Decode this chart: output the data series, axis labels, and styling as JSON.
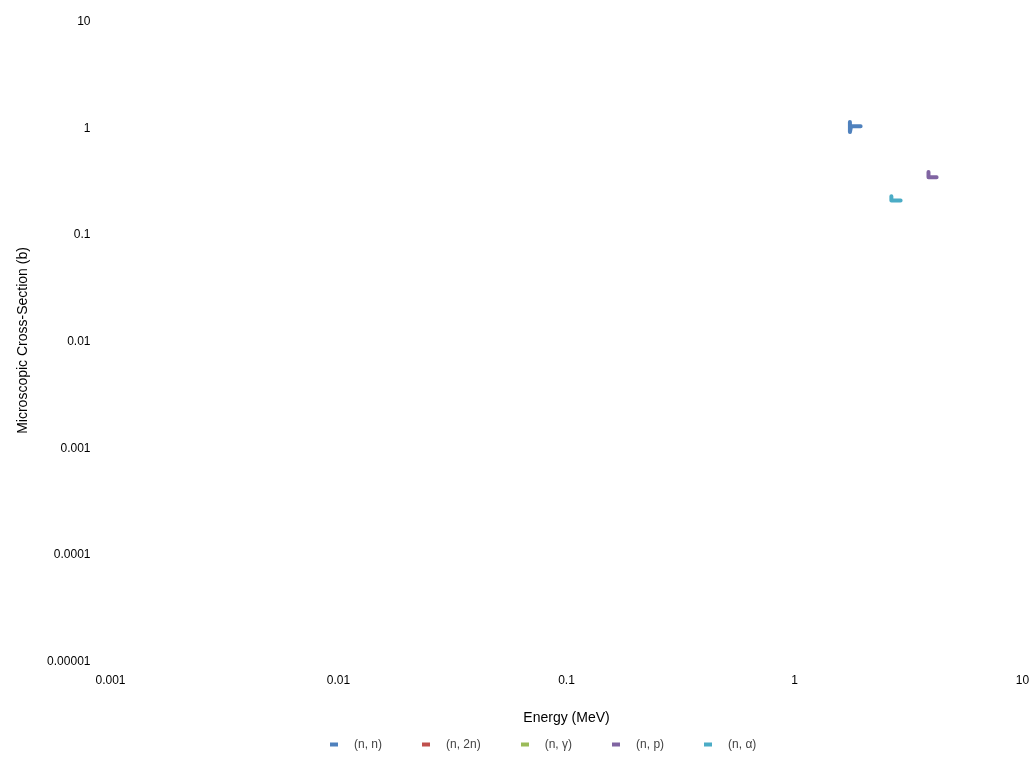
{
  "chart_data": {
    "type": "line",
    "xlabel": "Energy (MeV)",
    "ylabel": "Microscopic Cross-Section (b)",
    "log": "xy",
    "xlim": [
      0.001,
      10
    ],
    "xticks": [
      0.001,
      0.01,
      0.1,
      1,
      10
    ],
    "ylim": [
      1e-05,
      10
    ],
    "yticks": [
      {
        "value": 1e-05,
        "label": "0.00001"
      },
      0.0001,
      0.001,
      0.01,
      0.1,
      1,
      10
    ],
    "grid": false,
    "legend": "bottom",
    "line_style": "solid",
    "series": [
      {
        "name": "(n, n)",
        "color": "#4f81bd",
        "x": [
          1.75,
          1.75,
          1.77,
          1.95
        ],
        "values": [
          1.12,
          0.9,
          1.02,
          1.02
        ]
      },
      {
        "name": "(n, 2n)",
        "color": "#c0504d",
        "values": [
          null
        ]
      },
      {
        "name": "(n, γ)",
        "color": "#9bbb59",
        "values": [
          null
        ]
      },
      {
        "name": "(n, p)",
        "color": "#8064a2",
        "x": [
          3.87,
          3.87,
          4.2
        ],
        "values": [
          0.38,
          0.34,
          0.34
        ]
      },
      {
        "name": "(n, α)",
        "color": "#4bacc6",
        "x": [
          2.66,
          2.66,
          2.92
        ],
        "values": [
          0.225,
          0.205,
          0.205
        ]
      }
    ]
  }
}
